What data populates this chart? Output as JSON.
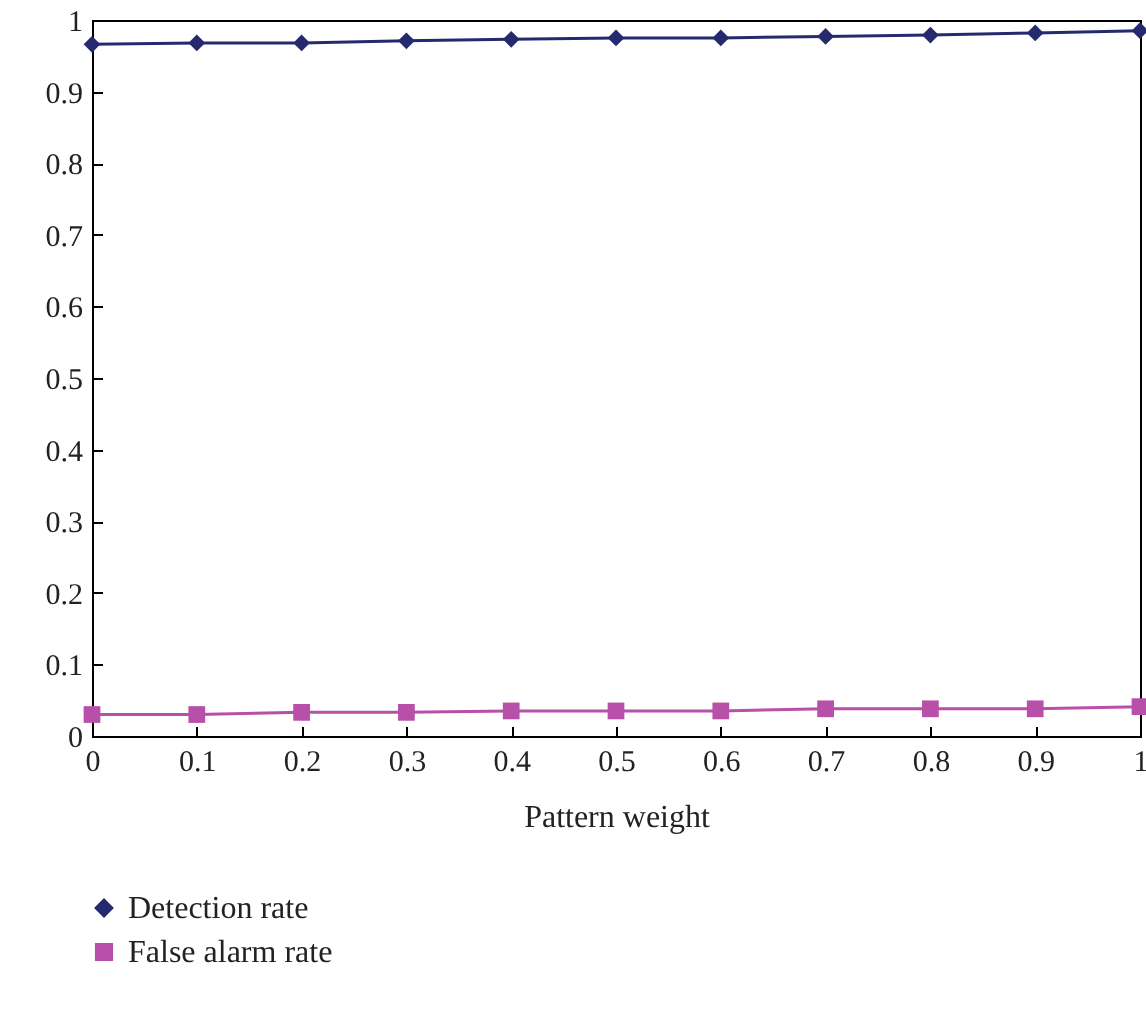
{
  "chart_data": {
    "type": "line",
    "xlabel": "Pattern weight",
    "x": [
      0,
      0.1,
      0.2,
      0.3,
      0.4,
      0.5,
      0.6,
      0.7,
      0.8,
      0.9,
      1
    ],
    "series": [
      {
        "name": "Detection rate",
        "color": "#252a6e",
        "marker": "diamond",
        "values": [
          0.966,
          0.968,
          0.968,
          0.971,
          0.973,
          0.975,
          0.975,
          0.977,
          0.979,
          0.982,
          0.985
        ]
      },
      {
        "name": "False alarm rate",
        "color": "#b84fa8",
        "marker": "square",
        "values": [
          0.03,
          0.03,
          0.033,
          0.033,
          0.035,
          0.035,
          0.035,
          0.038,
          0.038,
          0.038,
          0.041
        ]
      }
    ],
    "xlim": [
      0,
      1
    ],
    "xticks": [
      0,
      0.1,
      0.2,
      0.3,
      0.4,
      0.5,
      0.6,
      0.7,
      0.8,
      0.9,
      1
    ],
    "ylim": [
      0,
      1
    ],
    "yticks": [
      0,
      0.1,
      0.2,
      0.3,
      0.4,
      0.5,
      0.6,
      0.7,
      0.8,
      0.9,
      1
    ],
    "grid": false,
    "legend": "bottom left",
    "line_style": "solid"
  }
}
